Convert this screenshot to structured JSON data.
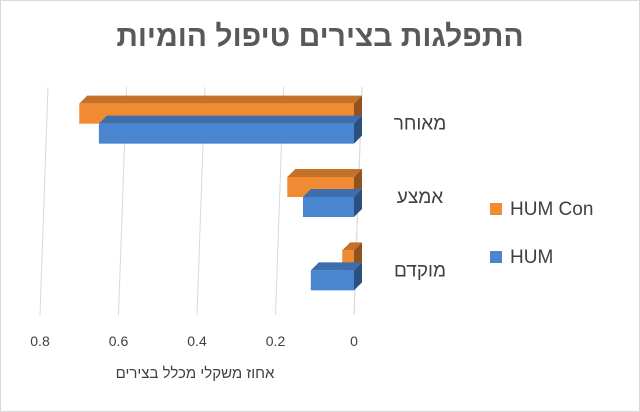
{
  "chart_data": {
    "type": "bar",
    "orientation": "horizontal",
    "title": "התפלגות בצירים טיפול הומיות",
    "xlabel": "אחוז משקלי מכלל בצירים",
    "ylabel": "",
    "categories": [
      "מאוחר",
      "אמצע",
      "מוקדם"
    ],
    "series": [
      {
        "name": "HUM Con",
        "color": "#f08a33",
        "values": [
          0.7,
          0.17,
          0.03
        ]
      },
      {
        "name": "HUM",
        "color": "#4a86d0",
        "values": [
          0.65,
          0.13,
          0.11
        ]
      }
    ],
    "xlim": [
      0,
      0.8
    ],
    "x_reversed": true,
    "x_ticks": [
      "0",
      "0.2",
      "0.4",
      "0.6",
      "0.8"
    ],
    "grid": true,
    "legend_position": "right",
    "style": "3d"
  }
}
